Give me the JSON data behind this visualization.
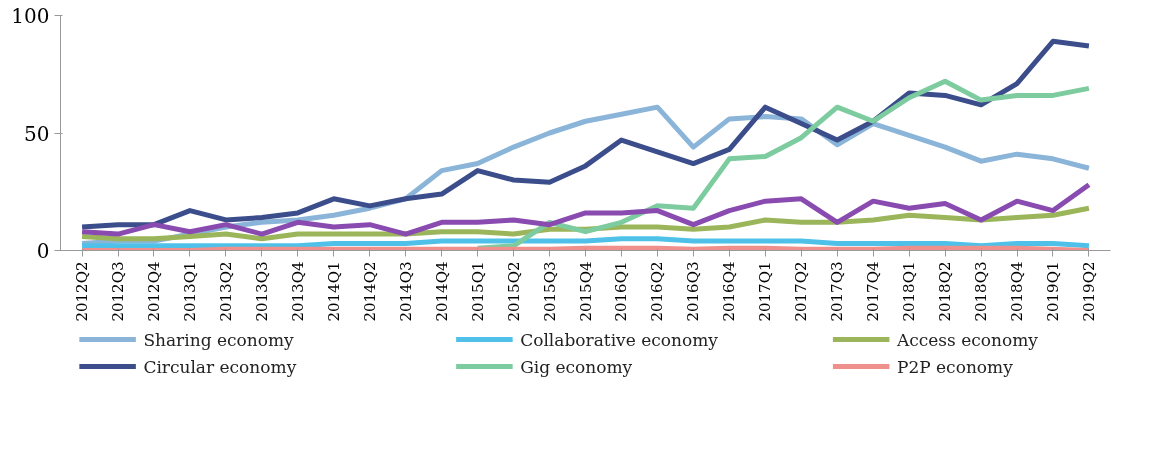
{
  "chart_data": {
    "type": "line",
    "categories": [
      "2012Q2",
      "2012Q3",
      "2012Q4",
      "2013Q1",
      "2013Q2",
      "2013Q3",
      "2013Q4",
      "2014Q1",
      "2014Q2",
      "2014Q3",
      "2014Q4",
      "2015Q1",
      "2015Q2",
      "2015Q3",
      "2015Q4",
      "2016Q1",
      "2016Q2",
      "2016Q3",
      "2016Q4",
      "2017Q1",
      "2017Q2",
      "2017Q3",
      "2017Q4",
      "2018Q1",
      "2018Q2",
      "2018Q3",
      "2018Q4",
      "2019Q1",
      "2019Q2"
    ],
    "series": [
      {
        "name": "Sharing economy",
        "color": "#8bb4d9",
        "values": [
          3,
          4,
          4,
          7,
          10,
          12,
          13,
          15,
          18,
          22,
          34,
          37,
          44,
          50,
          55,
          58,
          61,
          44,
          56,
          57,
          56,
          45,
          54,
          49,
          44,
          38,
          41,
          39,
          35
        ]
      },
      {
        "name": "Collaborative economy",
        "color": "#4fc1e9",
        "values": [
          2,
          2,
          2,
          2,
          2,
          2,
          2,
          3,
          3,
          3,
          4,
          4,
          4,
          4,
          4,
          5,
          5,
          4,
          4,
          4,
          4,
          3,
          3,
          3,
          3,
          2,
          3,
          3,
          2
        ]
      },
      {
        "name": "Access economy",
        "color": "#9bb55a",
        "values": [
          6,
          5,
          5,
          6,
          7,
          5,
          7,
          7,
          7,
          7,
          8,
          8,
          7,
          9,
          9,
          10,
          10,
          9,
          10,
          13,
          12,
          12,
          13,
          15,
          14,
          13,
          14,
          15,
          18
        ]
      },
      {
        "name": "Circular economy",
        "color": "#3b4d8a",
        "values": [
          10,
          11,
          11,
          17,
          13,
          14,
          16,
          22,
          19,
          22,
          24,
          34,
          30,
          29,
          36,
          47,
          42,
          37,
          43,
          61,
          54,
          47,
          55,
          67,
          66,
          62,
          71,
          89,
          87
        ]
      },
      {
        "name": "Gig economy",
        "color": "#7dcca0",
        "values": [
          null,
          null,
          null,
          null,
          null,
          null,
          null,
          null,
          null,
          null,
          null,
          1,
          2,
          12,
          8,
          12,
          19,
          18,
          39,
          40,
          48,
          61,
          55,
          65,
          72,
          64,
          66,
          66,
          69
        ]
      },
      {
        "name": "P2P economy",
        "color": "#f0908c",
        "values": [
          0,
          0,
          0,
          0,
          0.5,
          0.5,
          0.5,
          0.5,
          0.5,
          0.5,
          0.5,
          0.5,
          0.5,
          0.5,
          1,
          1,
          1,
          0.5,
          1,
          1,
          0.5,
          0.5,
          0.5,
          1,
          1,
          1,
          1,
          0.5,
          0
        ]
      },
      {
        "color": "#8a4bb0",
        "values": [
          8,
          7,
          11,
          8,
          11,
          7,
          12,
          10,
          11,
          7,
          12,
          12,
          13,
          11,
          16,
          16,
          17,
          11,
          17,
          21,
          22,
          12,
          21,
          18,
          20,
          13,
          21,
          17,
          28
        ]
      }
    ],
    "ylim": [
      0,
      100
    ],
    "yticks": [
      0,
      50,
      100
    ],
    "grid": false,
    "legend": "bottom",
    "line_style": "solid"
  }
}
